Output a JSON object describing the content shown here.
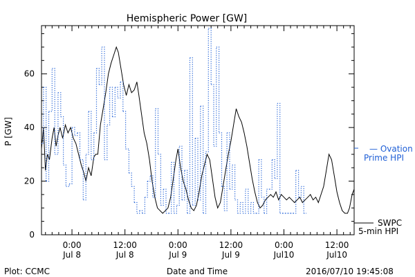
{
  "footer": {
    "plot_label": "Plot: CCMC",
    "timestamp": "2016/07/10 19:45:08"
  },
  "legend": {
    "ovation_line1": "— Ovation",
    "ovation_line2": "Prime HPI",
    "swpc_line1": "SWPC",
    "swpc_line2": "5-min HPI",
    "ovation_color": "#1f5fd6",
    "swpc_color": "#000000"
  },
  "chart_data": {
    "type": "line",
    "title": "Hemispheric Power [GW]",
    "xlabel": "Date and Time",
    "ylabel": "P [GW]",
    "ylim": [
      0,
      78
    ],
    "xlim": [
      -4.6,
      42.6
    ],
    "x_unit": "hours from 2016-07-08 00:00",
    "yticks": [
      0,
      20,
      40,
      60
    ],
    "xticks": [
      {
        "x": 0,
        "time": "0:00",
        "date": "Jul 8"
      },
      {
        "x": 8,
        "time": "12:00",
        "date": "Jul 8"
      },
      {
        "x": 16,
        "time": "0:00",
        "date": "Jul 9"
      },
      {
        "x": 24,
        "time": "12:00",
        "date": "Jul 9"
      },
      {
        "x": 32,
        "time": "0:00",
        "date": "Jul10"
      },
      {
        "x": 40,
        "time": "12:00",
        "date": "Jul10"
      }
    ],
    "grid": false,
    "legend_position": "right",
    "series": [
      {
        "name": "SWPC 5-min HPI",
        "style": "solid",
        "color": "#000000",
        "points": [
          [
            -4.6,
            32
          ],
          [
            -4.3,
            40
          ],
          [
            -4.0,
            24
          ],
          [
            -3.7,
            30
          ],
          [
            -3.4,
            28
          ],
          [
            -3.0,
            36
          ],
          [
            -2.7,
            40
          ],
          [
            -2.4,
            33
          ],
          [
            -2.1,
            37
          ],
          [
            -1.8,
            40
          ],
          [
            -1.4,
            36
          ],
          [
            -1.0,
            41
          ],
          [
            -0.6,
            38
          ],
          [
            -0.2,
            40
          ],
          [
            0.2,
            36
          ],
          [
            0.6,
            34
          ],
          [
            1.0,
            30
          ],
          [
            1.4,
            26
          ],
          [
            1.8,
            23
          ],
          [
            2.1,
            20
          ],
          [
            2.5,
            25
          ],
          [
            2.9,
            22
          ],
          [
            3.3,
            29
          ],
          [
            3.6,
            30
          ],
          [
            3.9,
            30
          ],
          [
            4.3,
            41
          ],
          [
            4.7,
            47
          ],
          [
            5.1,
            53
          ],
          [
            5.5,
            60
          ],
          [
            5.9,
            64
          ],
          [
            6.3,
            67
          ],
          [
            6.7,
            70
          ],
          [
            7.0,
            68
          ],
          [
            7.4,
            62
          ],
          [
            7.8,
            56
          ],
          [
            8.2,
            52
          ],
          [
            8.6,
            56
          ],
          [
            9.0,
            53
          ],
          [
            9.4,
            54
          ],
          [
            9.8,
            57
          ],
          [
            10.1,
            52
          ],
          [
            10.5,
            45
          ],
          [
            10.9,
            38
          ],
          [
            11.3,
            34
          ],
          [
            11.7,
            28
          ],
          [
            12.1,
            20
          ],
          [
            12.5,
            14
          ],
          [
            12.9,
            10
          ],
          [
            13.3,
            9
          ],
          [
            13.7,
            8
          ],
          [
            14.1,
            9
          ],
          [
            14.5,
            10
          ],
          [
            14.9,
            14
          ],
          [
            15.3,
            21
          ],
          [
            15.7,
            28
          ],
          [
            16.0,
            32
          ],
          [
            16.4,
            25
          ],
          [
            16.8,
            20
          ],
          [
            17.2,
            17
          ],
          [
            17.6,
            13
          ],
          [
            18.0,
            10
          ],
          [
            18.4,
            9
          ],
          [
            18.8,
            11
          ],
          [
            19.2,
            16
          ],
          [
            19.6,
            22
          ],
          [
            20.0,
            26
          ],
          [
            20.4,
            30
          ],
          [
            20.8,
            28
          ],
          [
            21.2,
            21
          ],
          [
            21.6,
            14
          ],
          [
            22.0,
            10
          ],
          [
            22.4,
            12
          ],
          [
            22.8,
            18
          ],
          [
            23.2,
            24
          ],
          [
            23.6,
            30
          ],
          [
            24.0,
            35
          ],
          [
            24.4,
            41
          ],
          [
            24.8,
            47
          ],
          [
            25.2,
            44
          ],
          [
            25.6,
            42
          ],
          [
            26.0,
            38
          ],
          [
            26.4,
            33
          ],
          [
            26.8,
            27
          ],
          [
            27.2,
            21
          ],
          [
            27.6,
            16
          ],
          [
            28.0,
            12
          ],
          [
            28.4,
            10
          ],
          [
            28.8,
            11
          ],
          [
            29.2,
            13
          ],
          [
            29.6,
            14
          ],
          [
            30.0,
            15
          ],
          [
            30.4,
            14
          ],
          [
            30.8,
            16
          ],
          [
            31.2,
            13
          ],
          [
            31.6,
            15
          ],
          [
            32.0,
            14
          ],
          [
            32.4,
            13
          ],
          [
            32.8,
            14
          ],
          [
            33.2,
            13
          ],
          [
            33.6,
            12
          ],
          [
            34.0,
            13
          ],
          [
            34.4,
            14
          ],
          [
            34.8,
            12
          ],
          [
            35.2,
            13
          ],
          [
            35.6,
            14
          ],
          [
            36.0,
            15
          ],
          [
            36.4,
            13
          ],
          [
            36.8,
            14
          ],
          [
            37.2,
            12
          ],
          [
            37.6,
            15
          ],
          [
            38.0,
            18
          ],
          [
            38.4,
            24
          ],
          [
            38.8,
            30
          ],
          [
            39.2,
            28
          ],
          [
            39.6,
            22
          ],
          [
            40.0,
            16
          ],
          [
            40.4,
            12
          ],
          [
            40.8,
            9
          ],
          [
            41.2,
            8
          ],
          [
            41.6,
            8
          ],
          [
            41.9,
            10
          ],
          [
            42.3,
            15
          ],
          [
            42.6,
            17
          ]
        ]
      },
      {
        "name": "Ovation Prime HPI",
        "style": "dotted",
        "color": "#1f5fd6",
        "points": [
          [
            -4.6,
            34
          ],
          [
            -4.3,
            55
          ],
          [
            -3.9,
            20
          ],
          [
            -3.5,
            46
          ],
          [
            -3.0,
            62
          ],
          [
            -2.6,
            30
          ],
          [
            -2.1,
            53
          ],
          [
            -1.7,
            44
          ],
          [
            -1.3,
            26
          ],
          [
            -0.9,
            18
          ],
          [
            -0.4,
            19
          ],
          [
            0.0,
            40
          ],
          [
            0.4,
            37
          ],
          [
            0.8,
            38
          ],
          [
            1.2,
            28
          ],
          [
            1.7,
            13
          ],
          [
            2.1,
            30
          ],
          [
            2.5,
            46
          ],
          [
            2.9,
            28
          ],
          [
            3.3,
            38
          ],
          [
            3.7,
            62
          ],
          [
            4.1,
            56
          ],
          [
            4.5,
            70
          ],
          [
            4.9,
            28
          ],
          [
            5.3,
            41
          ],
          [
            5.7,
            55
          ],
          [
            6.1,
            44
          ],
          [
            6.5,
            55
          ],
          [
            6.9,
            51
          ],
          [
            7.3,
            57
          ],
          [
            7.7,
            46
          ],
          [
            8.1,
            32
          ],
          [
            8.6,
            23
          ],
          [
            9.0,
            18
          ],
          [
            9.4,
            12
          ],
          [
            9.8,
            8
          ],
          [
            10.2,
            9
          ],
          [
            10.6,
            8
          ],
          [
            11.0,
            14
          ],
          [
            11.4,
            20
          ],
          [
            11.8,
            22
          ],
          [
            12.2,
            14
          ],
          [
            12.6,
            47
          ],
          [
            13.0,
            30
          ],
          [
            13.4,
            11
          ],
          [
            13.8,
            17
          ],
          [
            14.2,
            8
          ],
          [
            14.6,
            8
          ],
          [
            15.0,
            27
          ],
          [
            15.4,
            8
          ],
          [
            15.8,
            11
          ],
          [
            16.2,
            33
          ],
          [
            16.6,
            13
          ],
          [
            17.0,
            24
          ],
          [
            17.4,
            8
          ],
          [
            17.8,
            66
          ],
          [
            18.2,
            11
          ],
          [
            18.6,
            36
          ],
          [
            19.0,
            13
          ],
          [
            19.4,
            48
          ],
          [
            19.8,
            8
          ],
          [
            20.2,
            31
          ],
          [
            20.6,
            77
          ],
          [
            21.0,
            56
          ],
          [
            21.4,
            33
          ],
          [
            21.8,
            70
          ],
          [
            22.2,
            38
          ],
          [
            22.6,
            18
          ],
          [
            23.0,
            9
          ],
          [
            23.4,
            38
          ],
          [
            23.8,
            17
          ],
          [
            24.2,
            26
          ],
          [
            24.6,
            13
          ],
          [
            25.0,
            8
          ],
          [
            25.4,
            12
          ],
          [
            25.8,
            8
          ],
          [
            26.2,
            17
          ],
          [
            26.6,
            8
          ],
          [
            27.0,
            12
          ],
          [
            27.4,
            8
          ],
          [
            27.8,
            8
          ],
          [
            28.2,
            28
          ],
          [
            28.6,
            14
          ],
          [
            29.0,
            8
          ],
          [
            29.4,
            17
          ],
          [
            29.8,
            17
          ],
          [
            30.2,
            28
          ],
          [
            30.6,
            21
          ],
          [
            31.0,
            49
          ],
          [
            31.4,
            8
          ],
          [
            31.8,
            8
          ],
          [
            32.2,
            8
          ],
          [
            32.6,
            8
          ],
          [
            33.0,
            8
          ],
          [
            33.4,
            8
          ],
          [
            33.8,
            24
          ],
          [
            34.2,
            14
          ],
          [
            34.6,
            18
          ],
          [
            35.0,
            8
          ],
          [
            35.4,
            8
          ]
        ]
      }
    ]
  }
}
